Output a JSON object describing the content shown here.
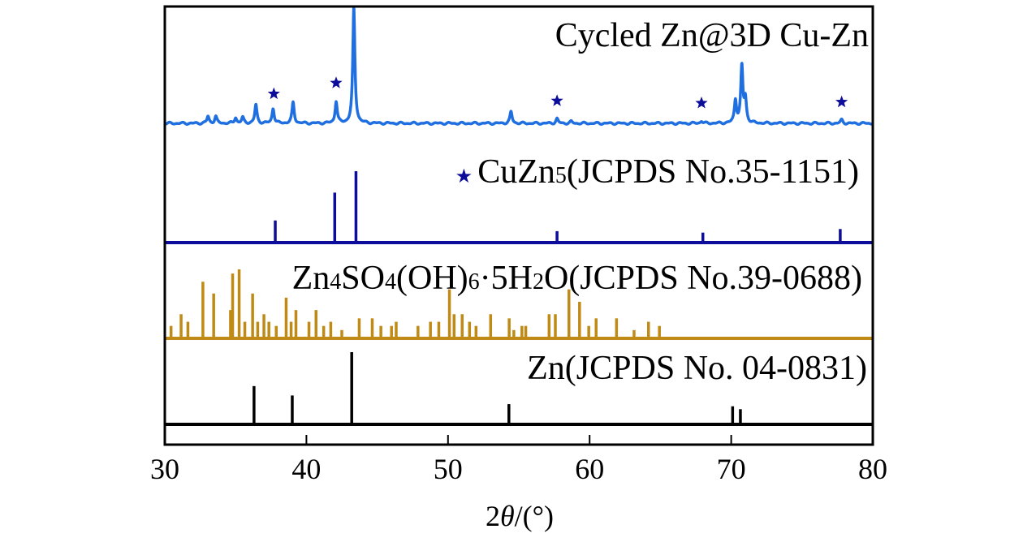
{
  "chart_data": {
    "type": "line",
    "xlabel": "2θ/(°)",
    "xlabel_parts": [
      {
        "t": "2"
      },
      {
        "t": "θ",
        "italic": true
      },
      {
        "t": "/(°)"
      }
    ],
    "xlim": [
      30,
      80
    ],
    "xticks": [
      "30",
      "40",
      "50",
      "60",
      "70",
      "80"
    ],
    "ylabel": "",
    "grid": false,
    "colors": {
      "cycled": "#1f6fe0",
      "cuzn5": "#0d0d9c",
      "basic_zinc_sulfate": "#c08a16",
      "zn": "#000000",
      "star": "#0d0d9c"
    },
    "series": [
      {
        "key": "cycled",
        "label_parts": [
          {
            "t": "Cycled Zn@3D Cu-Zn"
          }
        ],
        "kind": "pattern",
        "peaks": [
          [
            33.05,
            6
          ],
          [
            33.6,
            6
          ],
          [
            35.0,
            5
          ],
          [
            35.5,
            5
          ],
          [
            36.43,
            16
          ],
          [
            37.65,
            13
          ],
          [
            39.06,
            18
          ],
          [
            42.1,
            19
          ],
          [
            43.35,
            100
          ],
          [
            54.45,
            10
          ],
          [
            57.7,
            4
          ],
          [
            58.7,
            1.5
          ],
          [
            67.9,
            2
          ],
          [
            70.3,
            20
          ],
          [
            70.75,
            49
          ],
          [
            71.0,
            20
          ],
          [
            77.8,
            3
          ]
        ],
        "star_markers": [
          37.7,
          42.1,
          57.7,
          67.9,
          77.8
        ]
      },
      {
        "key": "cuzn5",
        "label_parts": [
          {
            "t": "★ ",
            "star": true
          },
          {
            "t": "CuZn"
          },
          {
            "t": "5",
            "sub": true
          },
          {
            "t": "(JCPDS No.35-1151)"
          }
        ],
        "kind": "sticks",
        "peaks": [
          [
            37.8,
            31
          ],
          [
            42.0,
            70
          ],
          [
            43.5,
            100
          ],
          [
            57.7,
            16
          ],
          [
            68.0,
            14
          ],
          [
            77.7,
            19
          ]
        ]
      },
      {
        "key": "basic_zinc_sulfate",
        "label_parts": [
          {
            "t": "Zn"
          },
          {
            "t": "4",
            "sub": true
          },
          {
            "t": "SO"
          },
          {
            "t": "4",
            "sub": true
          },
          {
            "t": "(OH)"
          },
          {
            "t": "6",
            "sub": true
          },
          {
            "t": "·5H"
          },
          {
            "t": "2",
            "sub": true
          },
          {
            "t": "O(JCPDS No.39-0688)"
          }
        ],
        "kind": "sticks",
        "peaks": [
          [
            30.44,
            18
          ],
          [
            31.15,
            35
          ],
          [
            31.63,
            24
          ],
          [
            32.69,
            82
          ],
          [
            33.45,
            65
          ],
          [
            34.64,
            41
          ],
          [
            34.79,
            94
          ],
          [
            35.25,
            100
          ],
          [
            35.65,
            24
          ],
          [
            36.2,
            65
          ],
          [
            36.56,
            24
          ],
          [
            37.0,
            35
          ],
          [
            37.35,
            24
          ],
          [
            37.87,
            18
          ],
          [
            38.57,
            59
          ],
          [
            38.92,
            24
          ],
          [
            39.26,
            41
          ],
          [
            40.18,
            24
          ],
          [
            40.68,
            41
          ],
          [
            41.22,
            18
          ],
          [
            41.72,
            24
          ],
          [
            42.5,
            12
          ],
          [
            43.73,
            29
          ],
          [
            44.65,
            29
          ],
          [
            45.26,
            18
          ],
          [
            46.01,
            18
          ],
          [
            46.34,
            24
          ],
          [
            47.88,
            18
          ],
          [
            48.76,
            24
          ],
          [
            49.35,
            24
          ],
          [
            50.1,
            71
          ],
          [
            50.43,
            35
          ],
          [
            51.0,
            35
          ],
          [
            51.52,
            24
          ],
          [
            51.98,
            18
          ],
          [
            53.01,
            35
          ],
          [
            54.32,
            29
          ],
          [
            54.65,
            12
          ],
          [
            55.22,
            18
          ],
          [
            55.49,
            18
          ],
          [
            57.14,
            35
          ],
          [
            57.58,
            35
          ],
          [
            58.54,
            71
          ],
          [
            59.29,
            53
          ],
          [
            59.94,
            18
          ],
          [
            60.46,
            29
          ],
          [
            61.9,
            29
          ],
          [
            63.14,
            12
          ],
          [
            64.16,
            24
          ],
          [
            64.93,
            18
          ]
        ]
      },
      {
        "key": "zn",
        "label_parts": [
          {
            "t": "Zn(JCPDS No. 04-0831)"
          }
        ],
        "kind": "sticks",
        "peaks": [
          [
            36.3,
            53
          ],
          [
            39.0,
            40
          ],
          [
            43.2,
            100
          ],
          [
            54.3,
            28
          ],
          [
            70.1,
            25
          ],
          [
            70.65,
            21
          ],
          [
            77.0,
            2
          ]
        ]
      }
    ]
  }
}
